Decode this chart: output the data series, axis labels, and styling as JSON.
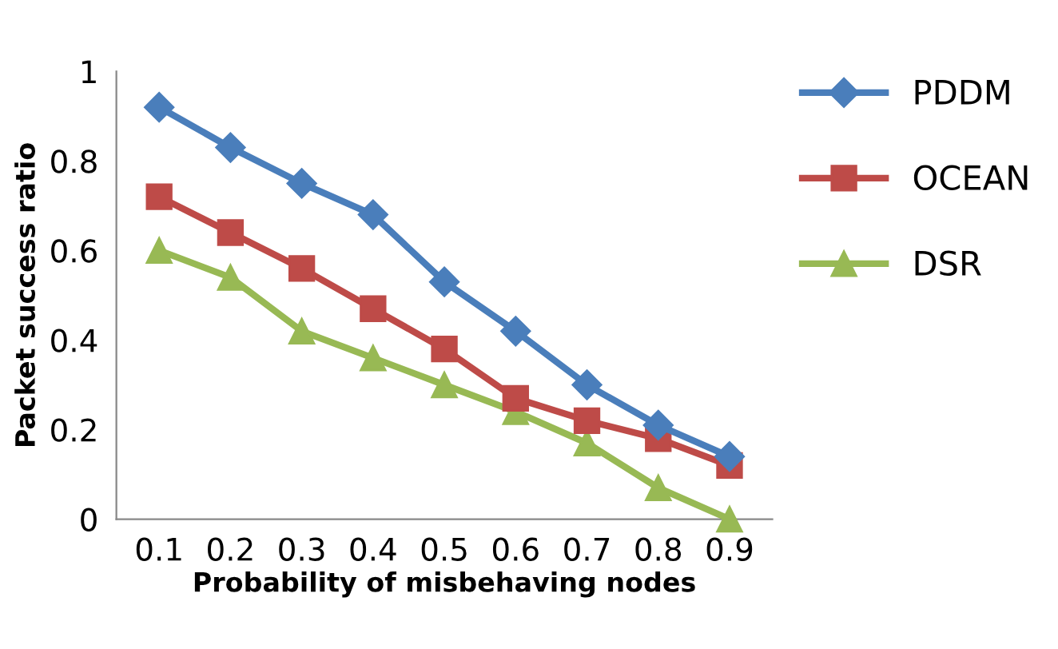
{
  "chart_data": {
    "type": "line",
    "xlabel": "Probability of misbehaving nodes",
    "ylabel": "Packet success ratio",
    "categories": [
      "0.1",
      "0.2",
      "0.3",
      "0.4",
      "0.5",
      "0.6",
      "0.7",
      "0.8",
      "0.9"
    ],
    "series": [
      {
        "name": "PDDM",
        "color": "#4a7ebb",
        "marker": "diamond",
        "values": [
          0.92,
          0.83,
          0.75,
          0.68,
          0.53,
          0.42,
          0.3,
          0.21,
          0.14
        ]
      },
      {
        "name": "OCEAN",
        "color": "#be4b48",
        "marker": "square",
        "values": [
          0.72,
          0.64,
          0.56,
          0.47,
          0.38,
          0.27,
          0.22,
          0.18,
          0.12
        ]
      },
      {
        "name": "DSR",
        "color": "#98b954",
        "marker": "triangle",
        "values": [
          0.6,
          0.54,
          0.42,
          0.36,
          0.3,
          0.24,
          0.17,
          0.07,
          0.0
        ]
      }
    ],
    "ylim": [
      0,
      1
    ],
    "yticks": [
      0,
      {
        "value": 0.2,
        "label": "0.2"
      },
      {
        "value": 0.4,
        "label": "0.4"
      },
      {
        "value": 0.6,
        "label": "0.6"
      },
      {
        "value": 0.8,
        "label": "0.8"
      },
      1
    ],
    "grid": false,
    "legend": "top right",
    "line_style": "solid"
  }
}
